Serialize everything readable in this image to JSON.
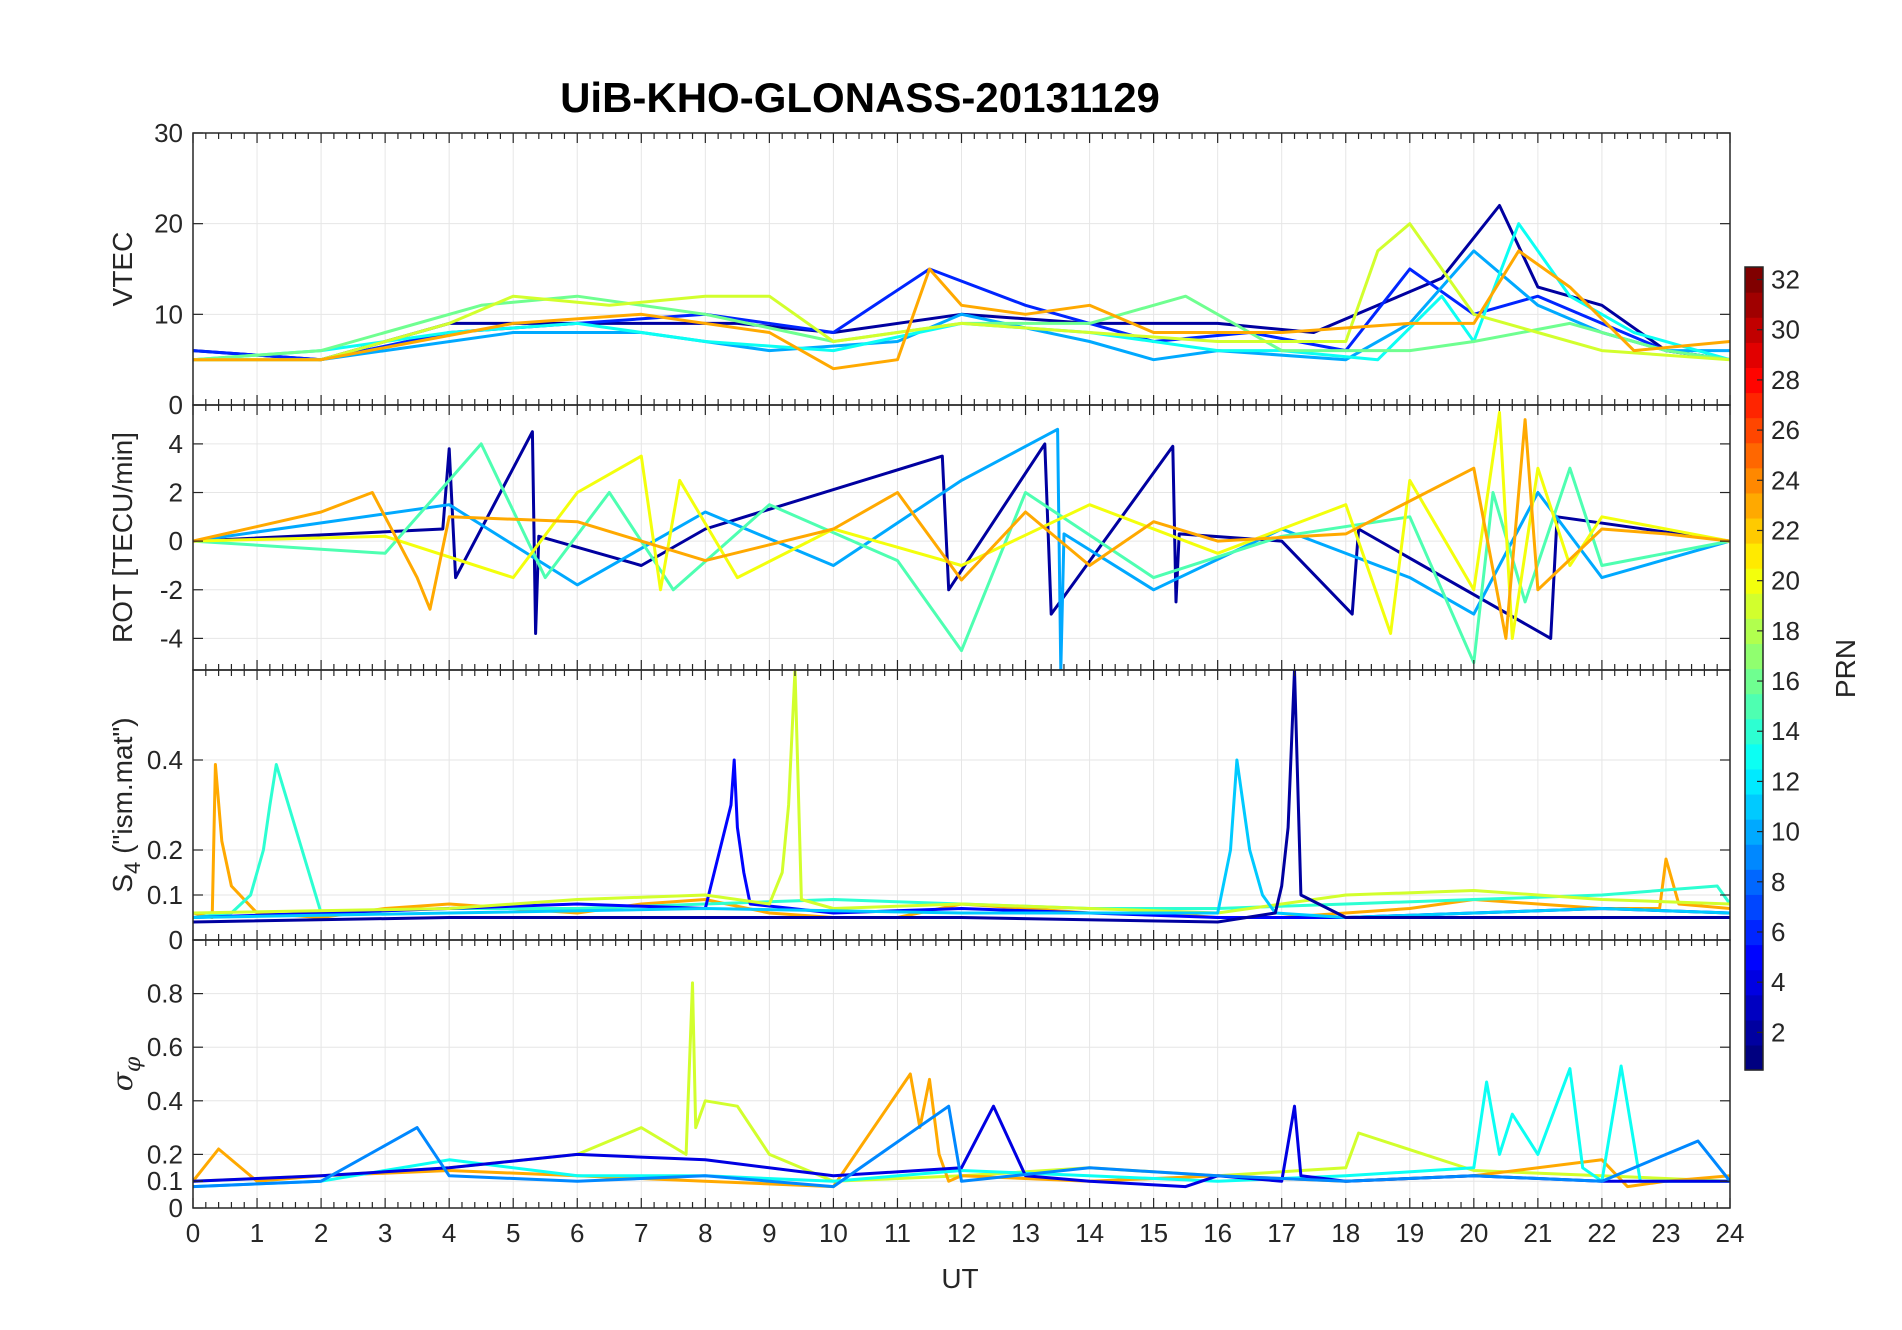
{
  "title": "UiB-KHO-GLONASS-20131129",
  "x_axis": {
    "label": "UT",
    "range": [
      0,
      24
    ],
    "ticks": [
      0,
      1,
      2,
      3,
      4,
      5,
      6,
      7,
      8,
      9,
      10,
      11,
      12,
      13,
      14,
      15,
      16,
      17,
      18,
      19,
      20,
      21,
      22,
      23,
      24
    ],
    "minor_ticks_per_major": 5
  },
  "colorbar": {
    "label": "PRN",
    "colormap": "jet",
    "range": [
      1,
      32
    ],
    "ticks": [
      2,
      4,
      6,
      8,
      10,
      12,
      14,
      16,
      18,
      20,
      22,
      24,
      26,
      28,
      30,
      32
    ]
  },
  "panels": [
    {
      "id": "vtec",
      "ylabel": "VTEC",
      "ylim": [
        0,
        30
      ],
      "yticks": [
        0,
        10,
        20,
        30
      ]
    },
    {
      "id": "rot",
      "ylabel": "ROT [TECU/min]",
      "ylim": [
        -5.3,
        5.6
      ],
      "yticks": [
        -4,
        -2,
        0,
        2,
        4
      ]
    },
    {
      "id": "s4",
      "ylabel_base": "S",
      "ylabel_sub": "4",
      "ylabel_rest": " (\"ism.mat\")",
      "ylim": [
        0,
        0.6
      ],
      "yticks": [
        0,
        0.1,
        0.2,
        0.4
      ],
      "ytick_labels": [
        "0",
        "0.1",
        "0.2",
        "0.4"
      ]
    },
    {
      "id": "sigma",
      "ylabel_base": "σ",
      "ylabel_sub": "φ",
      "ylim": [
        0,
        1
      ],
      "yticks": [
        0,
        0.1,
        0.2,
        0.4,
        0.6,
        0.8
      ],
      "ytick_labels": [
        "0",
        "0.1",
        "0.2",
        "0.4",
        "0.6",
        "0.8"
      ]
    }
  ],
  "chart_data": {
    "type": "line",
    "title": "UiB-KHO-GLONASS-20131129",
    "xlabel": "UT",
    "xlim": [
      0,
      24
    ],
    "color_by": "PRN",
    "grid": true,
    "series": [
      {
        "prn": 2,
        "panel": "vtec",
        "x": [
          0,
          2,
          4,
          5.5,
          7,
          8.5,
          10,
          12,
          14,
          16,
          17.5,
          18.5,
          19.5,
          20.4,
          21,
          22,
          23,
          24
        ],
        "y": [
          6,
          5,
          9,
          9,
          9,
          9,
          8,
          10,
          9,
          9,
          8,
          11,
          14,
          22,
          13,
          11,
          6,
          5
        ]
      },
      {
        "prn": 6,
        "panel": "vtec",
        "x": [
          0,
          2,
          4,
          6,
          8,
          10,
          11.5,
          13,
          15,
          16.5,
          18,
          19,
          20,
          21,
          22,
          23,
          24
        ],
        "y": [
          6,
          5,
          8,
          9,
          10,
          8,
          15,
          11,
          7,
          8,
          6,
          15,
          10,
          12,
          9,
          6,
          5
        ]
      },
      {
        "prn": 10,
        "panel": "vtec",
        "x": [
          0,
          2,
          3,
          5,
          7,
          9,
          11,
          12,
          14,
          15,
          16,
          18,
          19,
          20,
          21,
          22,
          23,
          24
        ],
        "y": [
          5,
          5,
          6,
          8,
          8,
          6,
          7,
          10,
          7,
          5,
          6,
          5,
          9,
          17,
          11,
          8,
          6,
          6
        ]
      },
      {
        "prn": 13,
        "panel": "vtec",
        "x": [
          0,
          2,
          4,
          6,
          8,
          10,
          12,
          14,
          16,
          17,
          18.5,
          19.5,
          20,
          20.7,
          21.5,
          22.5,
          24
        ],
        "y": [
          5,
          6,
          8,
          9,
          7,
          6,
          9,
          8,
          6,
          6,
          5,
          12,
          7,
          20,
          12,
          8,
          5
        ]
      },
      {
        "prn": 16,
        "panel": "vtec",
        "x": [
          0,
          2,
          3,
          4.5,
          6,
          8,
          10,
          12,
          14,
          15.5,
          17,
          19,
          20,
          21.5,
          23,
          24
        ],
        "y": [
          5,
          6,
          8,
          11,
          12,
          10,
          7,
          9,
          9,
          12,
          6,
          6,
          7,
          9,
          6,
          5
        ]
      },
      {
        "prn": 19,
        "panel": "vtec",
        "x": [
          0,
          2,
          4,
          5,
          6.5,
          8,
          9,
          10,
          11,
          12,
          14,
          16,
          18,
          18.5,
          19,
          19.5,
          20,
          21,
          22,
          24
        ],
        "y": [
          5,
          5,
          9,
          12,
          11,
          12,
          12,
          7,
          8,
          9,
          8,
          7,
          7,
          17,
          20,
          15,
          10,
          8,
          6,
          5
        ]
      },
      {
        "prn": 23,
        "panel": "vtec",
        "x": [
          0,
          2,
          3.5,
          5,
          7,
          9,
          10,
          11,
          11.5,
          12,
          13,
          14,
          15,
          17,
          19,
          20,
          20.7,
          21.5,
          22.5,
          24
        ],
        "y": [
          5,
          5,
          7,
          9,
          10,
          8,
          4,
          5,
          15,
          11,
          10,
          11,
          8,
          8,
          9,
          9,
          17,
          13,
          6,
          7
        ]
      },
      {
        "prn": 2,
        "panel": "rot",
        "x": [
          0,
          3.9,
          4.0,
          4.1,
          5.3,
          5.35,
          5.4,
          7,
          8,
          11.7,
          11.8,
          13.3,
          13.4,
          15.3,
          15.35,
          15.4,
          17,
          18.1,
          18.2,
          21.2,
          21.3,
          24
        ],
        "y": [
          0,
          0.5,
          3.8,
          -1.5,
          4.5,
          -3.8,
          0.2,
          -1,
          0.5,
          3.5,
          -2,
          4,
          -3,
          3.9,
          -2.5,
          0.3,
          0,
          -3,
          0.5,
          -4,
          1,
          0
        ]
      },
      {
        "prn": 10,
        "panel": "rot",
        "x": [
          0,
          4,
          6,
          8,
          10,
          12,
          13.5,
          13.55,
          13.6,
          15,
          17,
          19,
          20,
          21,
          22,
          24
        ],
        "y": [
          0,
          1.5,
          -1.8,
          1.2,
          -1,
          2.5,
          4.6,
          -5.3,
          0.3,
          -2,
          0.5,
          -1.5,
          -3,
          2,
          -1.5,
          0
        ]
      },
      {
        "prn": 15,
        "panel": "rot",
        "x": [
          0,
          3,
          4.5,
          5.5,
          6.5,
          7.5,
          9,
          11,
          12,
          13,
          15,
          17,
          19,
          20,
          20.3,
          20.8,
          21.5,
          22,
          24
        ],
        "y": [
          0,
          -0.5,
          4,
          -1.5,
          2,
          -2,
          1.5,
          -0.8,
          -4.5,
          2,
          -1.5,
          0.2,
          1,
          -5,
          2,
          -2.5,
          3,
          -1,
          0
        ]
      },
      {
        "prn": 20,
        "panel": "rot",
        "x": [
          0,
          3,
          5,
          6,
          7,
          7.3,
          7.6,
          8.5,
          10,
          12,
          14,
          16,
          18,
          18.7,
          19,
          20,
          20.4,
          20.6,
          21,
          21.5,
          22,
          24
        ],
        "y": [
          0,
          0.2,
          -1.5,
          2,
          3.5,
          -2,
          2.5,
          -1.5,
          0.5,
          -1,
          1.5,
          -0.5,
          1.5,
          -3.8,
          2.5,
          -2,
          5.3,
          -4,
          3,
          -1,
          1,
          0
        ]
      },
      {
        "prn": 23,
        "panel": "rot",
        "x": [
          0,
          2,
          2.8,
          3.5,
          3.7,
          4,
          6,
          8,
          10,
          11,
          12,
          13,
          14,
          15,
          16,
          18,
          20,
          20.5,
          20.8,
          21,
          22,
          23,
          24
        ],
        "y": [
          0,
          1.2,
          2,
          -1.5,
          -2.8,
          1,
          0.8,
          -0.8,
          0.5,
          2,
          -1.6,
          1.2,
          -1,
          0.8,
          0,
          0.3,
          3,
          -4,
          5,
          -2,
          0.5,
          0.3,
          0
        ]
      },
      {
        "prn": 23,
        "panel": "s4",
        "x": [
          0,
          0.3,
          0.35,
          0.45,
          0.6,
          1,
          2,
          3,
          4,
          5,
          6,
          7,
          8,
          9,
          10,
          11,
          12,
          13,
          14,
          15,
          16,
          17,
          18,
          19,
          20,
          21,
          22,
          22.9,
          23,
          23.2,
          24
        ],
        "y": [
          0.06,
          0.05,
          0.39,
          0.22,
          0.12,
          0.06,
          0.05,
          0.07,
          0.08,
          0.07,
          0.06,
          0.08,
          0.09,
          0.06,
          0.05,
          0.05,
          0.08,
          0.07,
          0.06,
          0.06,
          0.05,
          0.05,
          0.06,
          0.07,
          0.09,
          0.08,
          0.07,
          0.07,
          0.18,
          0.08,
          0.07
        ]
      },
      {
        "prn": 14,
        "panel": "s4",
        "x": [
          0,
          0.6,
          0.9,
          1.1,
          1.2,
          1.3,
          2,
          4,
          6,
          8,
          10,
          12,
          14,
          16,
          18,
          20,
          22,
          23.8,
          24
        ],
        "y": [
          0.05,
          0.06,
          0.1,
          0.2,
          0.3,
          0.39,
          0.06,
          0.07,
          0.07,
          0.08,
          0.09,
          0.08,
          0.07,
          0.07,
          0.08,
          0.09,
          0.1,
          0.12,
          0.08
        ]
      },
      {
        "prn": 5,
        "panel": "s4",
        "x": [
          0,
          4,
          6,
          8,
          8.4,
          8.45,
          8.5,
          8.6,
          8.7,
          10,
          12,
          14,
          16,
          18,
          20,
          22,
          24
        ],
        "y": [
          0.05,
          0.07,
          0.08,
          0.07,
          0.3,
          0.4,
          0.25,
          0.15,
          0.08,
          0.06,
          0.07,
          0.06,
          0.05,
          0.05,
          0.06,
          0.07,
          0.06
        ]
      },
      {
        "prn": 19,
        "panel": "s4",
        "x": [
          0,
          4,
          6,
          8,
          9,
          9.2,
          9.3,
          9.4,
          9.5,
          10,
          12,
          14,
          16,
          18,
          20,
          22,
          24
        ],
        "y": [
          0.06,
          0.07,
          0.09,
          0.1,
          0.08,
          0.15,
          0.3,
          0.6,
          0.09,
          0.07,
          0.08,
          0.07,
          0.06,
          0.1,
          0.11,
          0.09,
          0.08
        ]
      },
      {
        "prn": 11,
        "panel": "s4",
        "x": [
          0,
          4,
          8,
          12,
          16,
          16.2,
          16.3,
          16.5,
          16.7,
          16.9,
          18,
          20,
          22,
          24
        ],
        "y": [
          0.05,
          0.06,
          0.07,
          0.06,
          0.06,
          0.2,
          0.4,
          0.2,
          0.1,
          0.06,
          0.05,
          0.06,
          0.07,
          0.06
        ]
      },
      {
        "prn": 2,
        "panel": "s4",
        "x": [
          0,
          4,
          8,
          12,
          16,
          16.9,
          17.0,
          17.1,
          17.2,
          17.3,
          18,
          20,
          22,
          24
        ],
        "y": [
          0.04,
          0.05,
          0.05,
          0.05,
          0.04,
          0.06,
          0.12,
          0.25,
          0.6,
          0.1,
          0.05,
          0.05,
          0.05,
          0.05
        ]
      },
      {
        "prn": 19,
        "panel": "sigma",
        "x": [
          0,
          2,
          4,
          6,
          7,
          7.7,
          7.8,
          7.85,
          8,
          8.5,
          9,
          10,
          12,
          14,
          16,
          18,
          18.2,
          20,
          22,
          24
        ],
        "y": [
          0.1,
          0.12,
          0.15,
          0.2,
          0.3,
          0.2,
          0.84,
          0.3,
          0.4,
          0.38,
          0.2,
          0.1,
          0.12,
          0.15,
          0.12,
          0.15,
          0.28,
          0.14,
          0.12,
          0.1
        ]
      },
      {
        "prn": 23,
        "panel": "sigma",
        "x": [
          0,
          0.4,
          1,
          2,
          4,
          6,
          8,
          10,
          11.2,
          11.35,
          11.5,
          11.65,
          11.8,
          12,
          14,
          16,
          18,
          20,
          22,
          22.4,
          23,
          24
        ],
        "y": [
          0.1,
          0.22,
          0.1,
          0.12,
          0.14,
          0.12,
          0.1,
          0.08,
          0.5,
          0.3,
          0.48,
          0.2,
          0.1,
          0.12,
          0.1,
          0.12,
          0.1,
          0.12,
          0.18,
          0.08,
          0.1,
          0.12
        ]
      },
      {
        "prn": 13,
        "panel": "sigma",
        "x": [
          0,
          2,
          4,
          6,
          8,
          10,
          12,
          14,
          16,
          18,
          20,
          20.2,
          20.4,
          20.6,
          21,
          21.5,
          21.7,
          22,
          22.3,
          22.6,
          24
        ],
        "y": [
          0.08,
          0.1,
          0.18,
          0.12,
          0.12,
          0.1,
          0.14,
          0.12,
          0.1,
          0.12,
          0.15,
          0.47,
          0.2,
          0.35,
          0.2,
          0.52,
          0.15,
          0.1,
          0.53,
          0.1,
          0.1
        ]
      },
      {
        "prn": 4,
        "panel": "sigma",
        "x": [
          0,
          2,
          4,
          6,
          8,
          10,
          12,
          12.5,
          13,
          14,
          15.5,
          16,
          17,
          17.2,
          17.3,
          18,
          20,
          22,
          24
        ],
        "y": [
          0.1,
          0.12,
          0.15,
          0.2,
          0.18,
          0.12,
          0.15,
          0.38,
          0.12,
          0.1,
          0.08,
          0.12,
          0.1,
          0.38,
          0.12,
          0.1,
          0.12,
          0.1,
          0.1
        ]
      },
      {
        "prn": 9,
        "panel": "sigma",
        "x": [
          0,
          2,
          3.5,
          4,
          6,
          8,
          10,
          11.8,
          12,
          14,
          16,
          18,
          20,
          22,
          23.5,
          24
        ],
        "y": [
          0.08,
          0.1,
          0.3,
          0.12,
          0.1,
          0.12,
          0.08,
          0.38,
          0.1,
          0.15,
          0.12,
          0.1,
          0.12,
          0.1,
          0.25,
          0.1
        ]
      }
    ]
  }
}
